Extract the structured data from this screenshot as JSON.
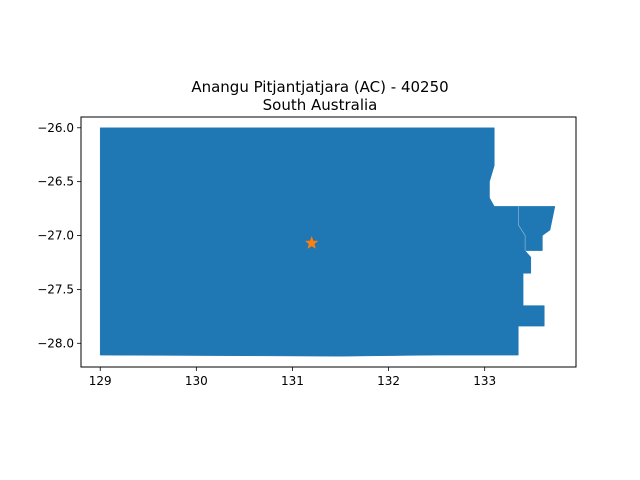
{
  "chart_data": {
    "type": "map",
    "title_lines": [
      "Anangu Pitjantjatjara (AC) - 40250",
      "South Australia"
    ],
    "xlim": [
      128.8,
      133.95
    ],
    "ylim": [
      -28.22,
      -25.9
    ],
    "xticks": [
      129,
      130,
      131,
      132,
      133
    ],
    "yticks": [
      -26.0,
      -26.5,
      -27.0,
      -27.5,
      -28.0
    ],
    "xtick_labels": [
      "129",
      "130",
      "131",
      "132",
      "133"
    ],
    "ytick_labels": [
      "−26.0",
      "−26.5",
      "−27.0",
      "−27.5",
      "−28.0"
    ],
    "region_color": "#1f77b4",
    "marker_color": "#ff7f0e",
    "marker": {
      "shape": "star",
      "lon": 131.2,
      "lat": -27.07
    },
    "polygons": [
      [
        [
          129.0,
          -26.0
        ],
        [
          133.1,
          -26.0
        ],
        [
          133.1,
          -26.35
        ],
        [
          133.05,
          -26.5
        ],
        [
          133.05,
          -26.65
        ],
        [
          133.1,
          -26.73
        ],
        [
          133.35,
          -26.73
        ],
        [
          133.35,
          -26.9
        ],
        [
          133.42,
          -27.0
        ],
        [
          133.42,
          -27.14
        ],
        [
          133.48,
          -27.2
        ],
        [
          133.48,
          -27.35
        ],
        [
          133.4,
          -27.35
        ],
        [
          133.4,
          -27.55
        ],
        [
          133.4,
          -27.65
        ],
        [
          133.62,
          -27.65
        ],
        [
          133.62,
          -27.84
        ],
        [
          133.35,
          -27.84
        ],
        [
          133.35,
          -28.11
        ],
        [
          132.5,
          -28.11
        ],
        [
          131.5,
          -28.12
        ],
        [
          129.0,
          -28.11
        ]
      ],
      [
        [
          133.35,
          -26.73
        ],
        [
          133.73,
          -26.73
        ],
        [
          133.68,
          -26.95
        ],
        [
          133.6,
          -27.0
        ],
        [
          133.6,
          -27.14
        ],
        [
          133.42,
          -27.14
        ],
        [
          133.42,
          -27.0
        ],
        [
          133.35,
          -26.9
        ]
      ]
    ]
  }
}
